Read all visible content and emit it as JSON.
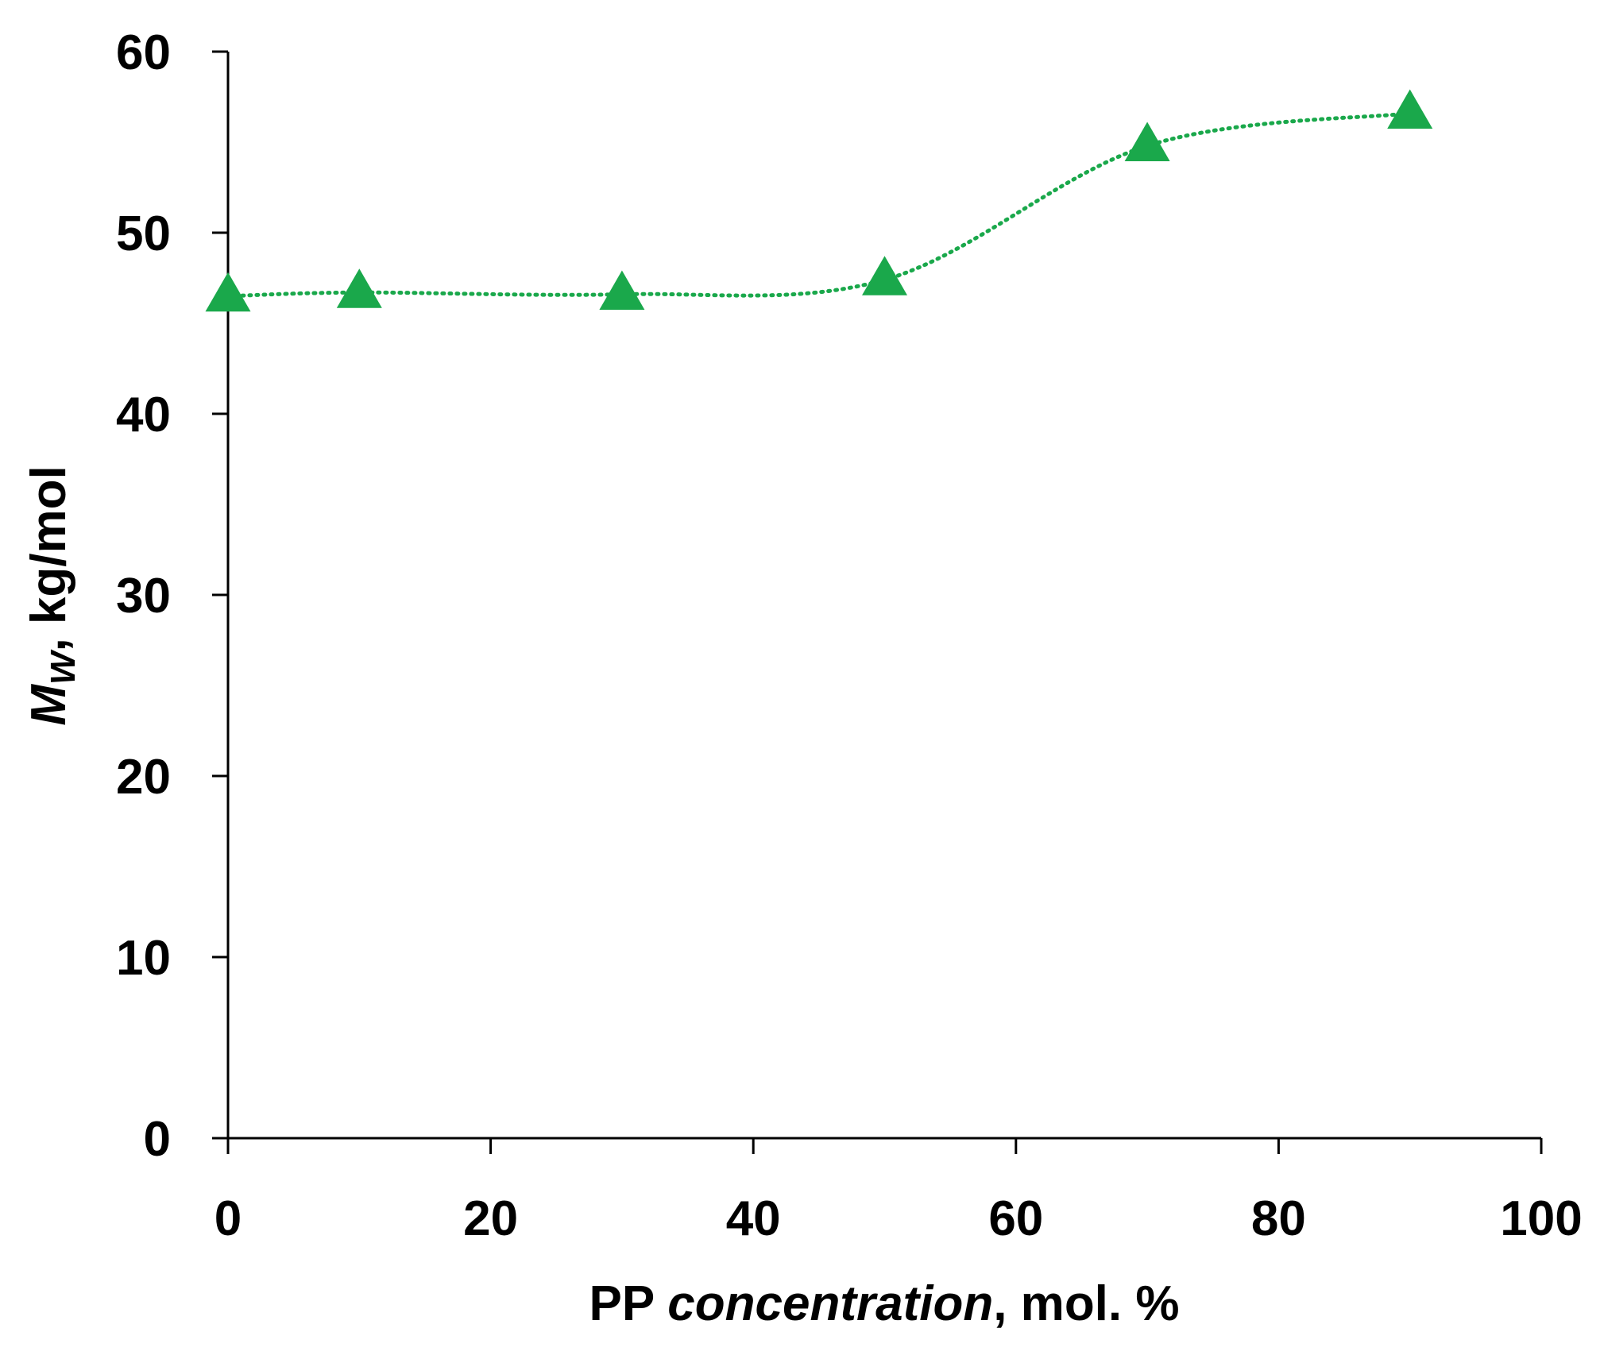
{
  "chart_data": {
    "type": "line",
    "xlabel": [
      "PP ",
      "concentration",
      ", mol. %"
    ],
    "ylabel": [
      "M",
      "W",
      ", kg/mol"
    ],
    "x": [
      0,
      10,
      30,
      50,
      70,
      90
    ],
    "series": [
      {
        "color": "#1aa84b",
        "values": [
          46.5,
          46.7,
          46.6,
          47.4,
          54.8,
          56.6
        ]
      }
    ],
    "xlim": [
      0,
      100
    ],
    "xticks": [
      0,
      20,
      40,
      60,
      80,
      100
    ],
    "ylim": [
      0,
      60
    ],
    "yticks": [
      0,
      10,
      20,
      30,
      40,
      50,
      60
    ],
    "grid": false
  }
}
